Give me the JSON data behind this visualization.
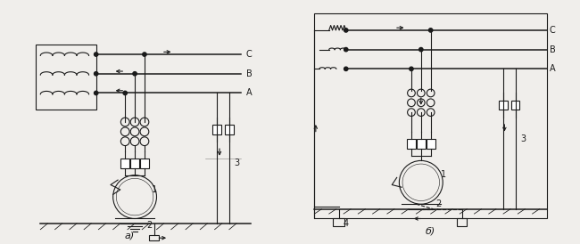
{
  "bg_color": "#f0eeeb",
  "line_color": "#1a1a1a",
  "title_a": "а)",
  "title_b": "б)",
  "labels_a": {
    "1": [
      1,
      2,
      3
    ],
    "C": "C",
    "B": "B",
    "A": "A"
  },
  "labels_b": {
    "1": [
      1,
      2,
      3,
      4
    ],
    "C": "C",
    "B": "B",
    "A": "A"
  }
}
